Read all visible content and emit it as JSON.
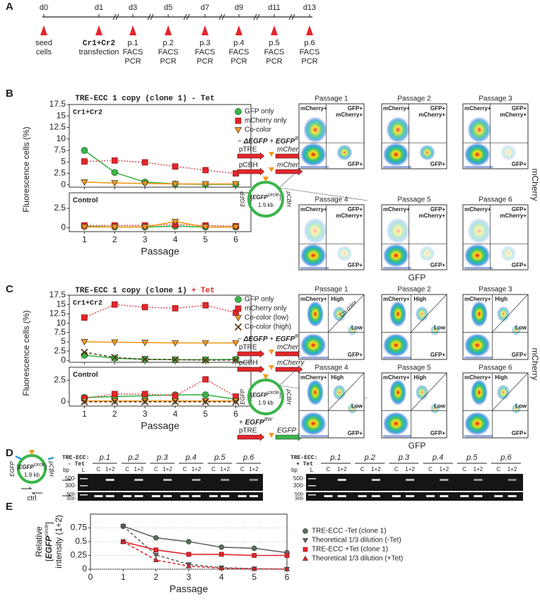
{
  "panel_labels": [
    "A",
    "B",
    "C",
    "D",
    "E"
  ],
  "timeline": {
    "days": [
      "d0",
      "d1",
      "d3",
      "d5",
      "d7",
      "d9",
      "d11",
      "d13"
    ],
    "events": [
      [
        "seed",
        "cells"
      ],
      [
        "Cr1+Cr2",
        "transfection"
      ],
      [
        "p.1",
        "FACS",
        "PCR"
      ],
      [
        "p.2",
        "FACS",
        "PCR"
      ],
      [
        "p.3",
        "FACS",
        "PCR"
      ],
      [
        "p.4",
        "FACS",
        "PCR"
      ],
      [
        "p.5",
        "FACS",
        "PCR"
      ],
      [
        "p.6",
        "FACS",
        "PCR"
      ]
    ]
  },
  "panel_b": {
    "title": [
      "TRE-ECC 1 copy (clone 1)",
      "- Tet"
    ],
    "construct": {
      "heading": [
        "~ ",
        "ΔEGFP",
        " + ",
        "EGFP",
        "BW"
      ],
      "promoters": [
        "pTRE",
        "pCBH"
      ],
      "genes": [
        "mCherry",
        "mCherry"
      ],
      "circle": {
        "left": "EGFP",
        "right": "pCBH",
        "name": [
          "[",
          "EGFP",
          "circle",
          "]"
        ],
        "size": "1.9 kb"
      }
    },
    "facs": {
      "titles": [
        "Passage 1",
        "Passage 2",
        "Passage 3",
        "Passage 4",
        "Passage 5",
        "Passage 6"
      ],
      "quadrants": {
        "top_left": "mCherry+",
        "top_right": [
          "GFP+",
          "mCherry+"
        ],
        "bottom_right": "GFP+"
      },
      "x_label": "GFP",
      "y_label": "mCherry"
    }
  },
  "panel_c": {
    "title": [
      "TRE-ECC 1 copy (clone 1)",
      "+ Tet"
    ],
    "construct": {
      "heading": [
        "~ ",
        "ΔEGFP",
        " + ",
        "EGFP",
        "BW"
      ],
      "promoters": [
        "pTRE",
        "pCBH"
      ],
      "genes": [
        "mCherry",
        "mCherry"
      ],
      "circle": {
        "left": "EGFP",
        "right": "pCBH",
        "name": [
          "[",
          "EGFP",
          "circle",
          "]"
        ],
        "size": "1.9 kb"
      },
      "extra": {
        "heading": [
          "+ ",
          "EGFP",
          "BW"
        ],
        "promoter": "pTRE",
        "gene": "EGFP"
      }
    },
    "facs": {
      "titles": [
        "Passage 1",
        "Passage 2",
        "Passage 3",
        "Passage 4",
        "Passage 5",
        "Passage 6"
      ],
      "quadrants": {
        "top_left": "mCherry+",
        "high": "High",
        "low": "Low",
        "bottom_right": "GFP+",
        "diagonal": "Co-color"
      },
      "x_label": "GFP",
      "y_label": "mCherry"
    }
  },
  "panel_d": {
    "circle": {
      "left": "EGFP",
      "right": "pCBH",
      "name": [
        "[",
        "EGFP",
        "circle",
        "]"
      ],
      "size": "1.9 kb"
    },
    "ctrl": "ctrl",
    "gels": [
      {
        "prefix": "TRE-ECC:",
        "condition": "- Tet",
        "passages": [
          "p.1",
          "p.2",
          "p.3",
          "p.4",
          "p.5",
          "p.6"
        ],
        "lanes": [
          "C",
          "1+2"
        ],
        "bp": "bp",
        "ladder": "L",
        "sizes": [
          "500-",
          "300-"
        ]
      },
      {
        "prefix": "TRE-ECC:",
        "condition": "+ Tet",
        "passages": [
          "p.1",
          "p.2",
          "p.3",
          "p.4",
          "p.5",
          "p.6"
        ],
        "lanes": [
          "C",
          "1+2"
        ],
        "bp": "bp",
        "ladder": "L",
        "sizes": [
          "500-",
          "300-"
        ]
      }
    ]
  },
  "chart_data": [
    {
      "type": "line",
      "title": "Cr1+Cr2",
      "ylabel": "Fluorescence cells (%)",
      "ylim": [
        -0.5,
        17.5
      ],
      "yticks": [
        0,
        2.5,
        5,
        7.5,
        10,
        12.5,
        15,
        17.5
      ],
      "series": [
        {
          "name": "GFP only",
          "color": "#3bb54a",
          "marker": "circle",
          "dash": "none",
          "values": [
            7.5,
            2.7,
            0.6,
            0.2,
            0.1,
            0.1
          ]
        },
        {
          "name": "mCherry only",
          "color": "#e3262b",
          "marker": "square",
          "dash": "dot",
          "values": [
            5.1,
            5.3,
            4.9,
            4.0,
            3.2,
            2.5
          ]
        },
        {
          "name": "Co-color",
          "color": "#f39a1e",
          "marker": "triangle-down",
          "dash": "none",
          "values": [
            0.6,
            0.4,
            0.3,
            0.2,
            0.2,
            0.2
          ]
        }
      ]
    },
    {
      "type": "line",
      "title": "Control",
      "xlabel": "Passage",
      "categories": [
        1,
        2,
        3,
        4,
        5,
        6
      ],
      "ylim": [
        -0.5,
        4.5
      ],
      "yticks": [
        0,
        2.5
      ],
      "series": [
        {
          "color": "#3bb54a",
          "marker": "circle",
          "dash": "none",
          "values": [
            0.2,
            0.1,
            0.1,
            0.2,
            0.1,
            0.1
          ]
        },
        {
          "color": "#e3262b",
          "marker": "square",
          "dash": "dot",
          "values": [
            0.3,
            0.3,
            0.3,
            0.4,
            0.3,
            0.2
          ]
        },
        {
          "color": "#f39a1e",
          "marker": "triangle-down",
          "dash": "none",
          "values": [
            0.1,
            0.1,
            0.1,
            0.8,
            0.1,
            0.1
          ]
        }
      ]
    },
    {
      "type": "line",
      "title": "Cr1+Cr2",
      "ylabel": "Fluorescence cells (%)",
      "ylim": [
        -0.5,
        17.5
      ],
      "yticks": [
        0,
        2.5,
        5,
        7.5,
        10,
        12.5,
        15,
        17.5
      ],
      "series": [
        {
          "name": "GFP only",
          "color": "#3bb54a",
          "marker": "circle",
          "dash": "none",
          "values": [
            1.4,
            0.6,
            0.3,
            0.2,
            0.2,
            0.3
          ]
        },
        {
          "name": "mCherry only",
          "color": "#e3262b",
          "marker": "square",
          "dash": "dot",
          "values": [
            11.5,
            15.0,
            14.3,
            14.0,
            14.8,
            12.8
          ]
        },
        {
          "name": "Co-color (low)",
          "color": "#f39a1e",
          "marker": "triangle-down",
          "dash": "none",
          "values": [
            5.0,
            4.9,
            4.8,
            4.7,
            4.7,
            4.7
          ]
        },
        {
          "name": "Co-color (high)",
          "color": "#5a3a1a",
          "marker": "x",
          "dash": "dash",
          "values": [
            2.2,
            0.8,
            0.3,
            0.2,
            0.1,
            0.1
          ]
        }
      ]
    },
    {
      "type": "line",
      "title": "Control",
      "xlabel": "Passage",
      "categories": [
        1,
        2,
        3,
        4,
        5,
        6
      ],
      "ylim": [
        -0.5,
        4.0
      ],
      "yticks": [
        0,
        2.5
      ],
      "series": [
        {
          "color": "#3bb54a",
          "marker": "circle",
          "dash": "none",
          "values": [
            0.5,
            0.6,
            0.7,
            0.8,
            0.8,
            0.3
          ]
        },
        {
          "color": "#e3262b",
          "marker": "square",
          "dash": "dot",
          "values": [
            0.4,
            0.9,
            0.9,
            0.7,
            2.6,
            0.6
          ]
        },
        {
          "color": "#f39a1e",
          "marker": "triangle-down",
          "dash": "none",
          "values": [
            0.1,
            0.1,
            0.1,
            0.1,
            0.1,
            0.1
          ]
        },
        {
          "color": "#5a3a1a",
          "marker": "x",
          "dash": "dash",
          "values": [
            0,
            0,
            0,
            0,
            0,
            0
          ]
        }
      ]
    },
    {
      "type": "line",
      "ylabel": {
        "line1": "Relative",
        "line2": [
          "[",
          "EGFP",
          "circle",
          "]"
        ],
        "line3": "intensity (1+2)"
      },
      "xlabel": "Passage",
      "x": [
        1,
        2,
        3,
        4,
        5,
        6
      ],
      "xlim": [
        0,
        6
      ],
      "xticks": [
        0,
        1,
        2,
        3,
        4,
        5,
        6
      ],
      "ylim": [
        0,
        1
      ],
      "yticks": [
        0,
        0.25,
        0.5,
        0.75
      ],
      "grid": true,
      "legend": "right",
      "series": [
        {
          "name": "TRE-ECC -Tet (clone 1)",
          "color": "#666666",
          "marker": "circle",
          "dash": "none",
          "values": [
            0.78,
            0.57,
            0.5,
            0.4,
            0.38,
            0.3
          ]
        },
        {
          "name": "Theoretical 1/3 dilution (-Tet)",
          "color": "#666666",
          "marker": "triangle-down",
          "dash": "dash",
          "values": [
            0.78,
            0.26,
            0.087,
            0.029,
            0.0096,
            0.0032
          ]
        },
        {
          "name": "TRE-ECC +Tet (clone 1)",
          "color": "#e3262b",
          "marker": "square",
          "dash": "none",
          "values": [
            0.5,
            0.35,
            0.27,
            0.27,
            0.25,
            0.25
          ]
        },
        {
          "name": "Theoretical 1/3 dilution (+Tet)",
          "color": "#e3262b",
          "marker": "triangle-up",
          "dash": "dash",
          "values": [
            0.5,
            0.167,
            0.056,
            0.019,
            0.006,
            0.002
          ]
        }
      ]
    }
  ]
}
